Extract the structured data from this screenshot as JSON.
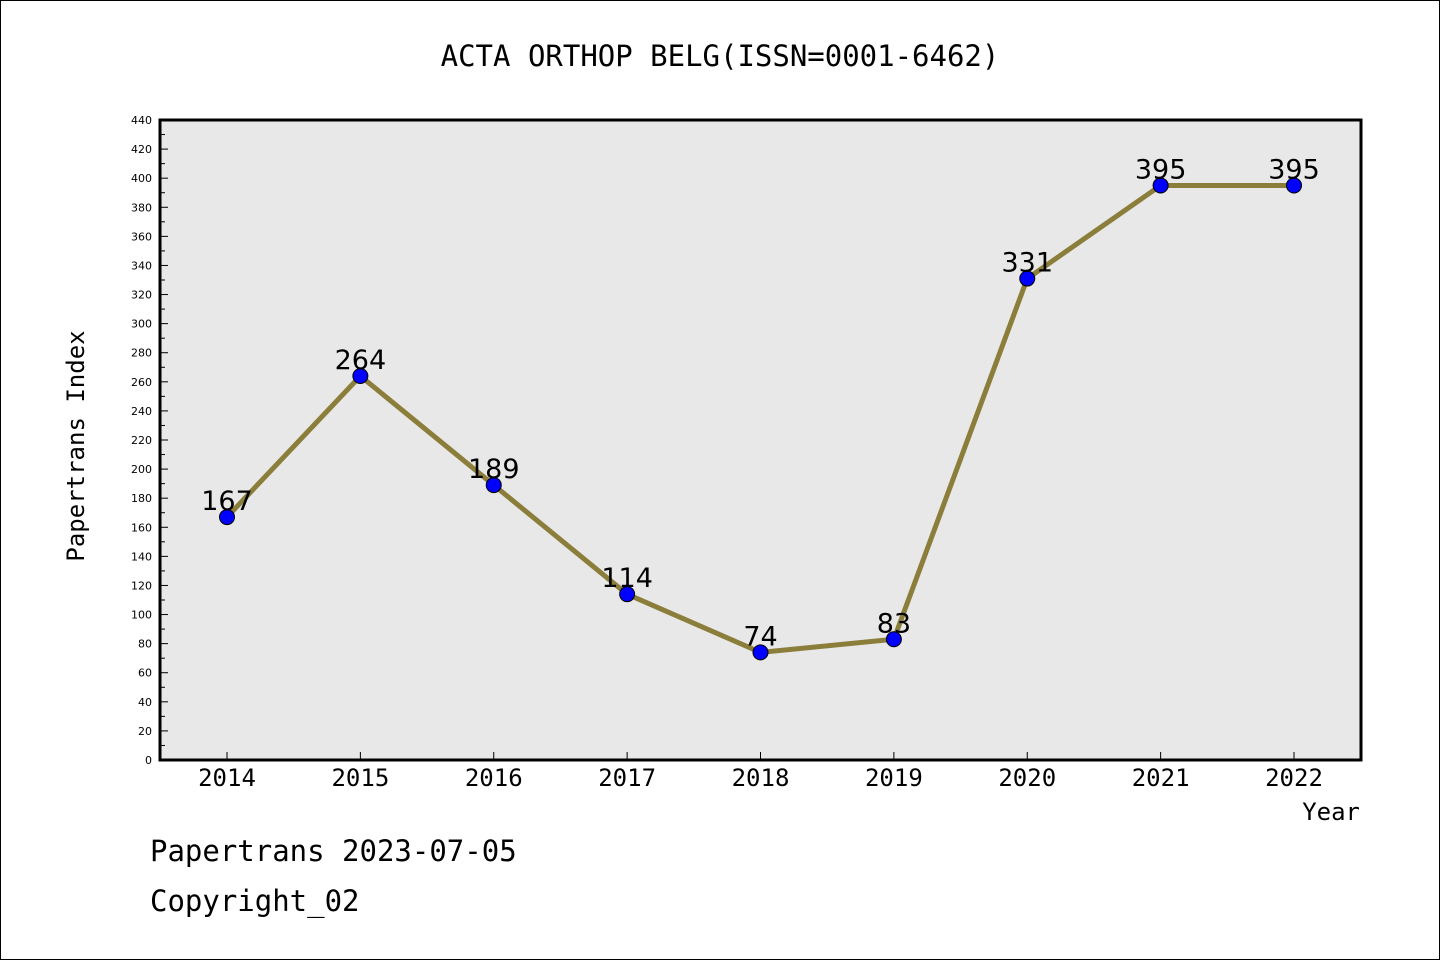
{
  "chart_data": {
    "type": "line",
    "title": "ACTA ORTHOP BELG(ISSN=0001-6462)",
    "xlabel": "Year",
    "ylabel": "Papertrans Index",
    "categories": [
      "2014",
      "2015",
      "2016",
      "2017",
      "2018",
      "2019",
      "2020",
      "2021",
      "2022"
    ],
    "values": [
      167,
      264,
      189,
      114,
      74,
      83,
      331,
      395,
      395
    ],
    "data_labels": [
      "167",
      "264",
      "189",
      "114",
      "74",
      "83",
      "331",
      "395",
      "395"
    ],
    "ylim": [
      0,
      440
    ],
    "y_ticks": [
      "0",
      "20",
      "40",
      "60",
      "80",
      "100",
      "120",
      "140",
      "160",
      "180",
      "200",
      "220",
      "240",
      "260",
      "280",
      "300",
      "320",
      "340",
      "360",
      "380",
      "400",
      "420",
      "440"
    ],
    "grid": false,
    "legend": "none",
    "colors": {
      "line": "#8B7D3A",
      "marker": "#0000FF",
      "plot_background": "#E8E8E8"
    }
  },
  "footer": {
    "line1": "Papertrans 2023-07-05",
    "line2": "Copyright_02"
  }
}
